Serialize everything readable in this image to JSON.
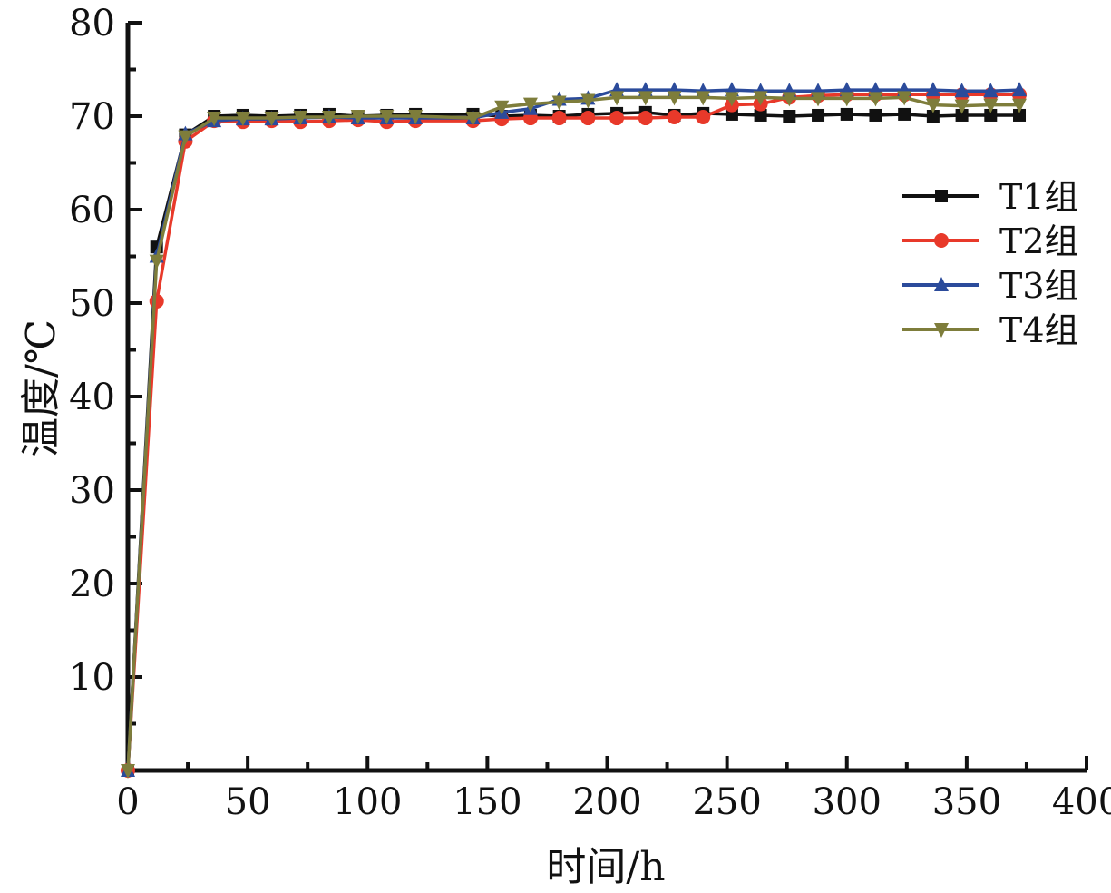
{
  "chart_data": {
    "type": "line",
    "title": "",
    "xlabel": "时间/h",
    "ylabel": "温度/℃",
    "xlim": [
      0,
      400
    ],
    "ylim": [
      0,
      80
    ],
    "xticks": [
      0,
      50,
      100,
      150,
      200,
      250,
      300,
      350,
      400
    ],
    "yticks": [
      10,
      20,
      30,
      40,
      50,
      60,
      70,
      80
    ],
    "grid": false,
    "legend_position": "right",
    "series": [
      {
        "name": "T1组",
        "color": "#111111",
        "marker": "square",
        "x": [
          0,
          12,
          24,
          36,
          48,
          60,
          72,
          84,
          96,
          108,
          120,
          144,
          156,
          168,
          180,
          192,
          204,
          216,
          228,
          240,
          252,
          264,
          276,
          288,
          300,
          312,
          324,
          336,
          348,
          360,
          372
        ],
        "y": [
          0,
          56,
          68,
          70,
          70.1,
          70,
          70.1,
          70.2,
          70,
          70.1,
          70.2,
          70.2,
          70,
          70.1,
          70,
          70.2,
          70.3,
          70.4,
          70.1,
          70.3,
          70.2,
          70.1,
          70,
          70.1,
          70.2,
          70.1,
          70.2,
          70,
          70.1,
          70.1,
          70.1
        ]
      },
      {
        "name": "T2组",
        "color": "#e8392a",
        "marker": "circle",
        "x": [
          0,
          12,
          24,
          36,
          48,
          60,
          72,
          84,
          96,
          108,
          120,
          144,
          156,
          168,
          180,
          192,
          204,
          216,
          228,
          240,
          252,
          264,
          276,
          288,
          300,
          312,
          324,
          336,
          348,
          360,
          372
        ],
        "y": [
          0,
          50.2,
          67.3,
          69.5,
          69.4,
          69.5,
          69.4,
          69.5,
          69.6,
          69.4,
          69.5,
          69.5,
          69.7,
          69.8,
          69.8,
          69.8,
          69.8,
          69.8,
          69.9,
          69.9,
          71.2,
          71.3,
          72,
          72.2,
          72.3,
          72.3,
          72.3,
          72.3,
          72.3,
          72.3,
          72.3
        ]
      },
      {
        "name": "T3组",
        "color": "#2b4b9b",
        "marker": "triangle-up",
        "x": [
          0,
          12,
          24,
          36,
          48,
          60,
          72,
          84,
          96,
          108,
          120,
          144,
          156,
          168,
          180,
          192,
          204,
          216,
          228,
          240,
          252,
          264,
          276,
          288,
          300,
          312,
          324,
          336,
          348,
          360,
          372
        ],
        "y": [
          0,
          55,
          68.1,
          69.5,
          69.7,
          69.7,
          69.8,
          69.9,
          69.8,
          69.8,
          69.8,
          69.8,
          70.4,
          70.8,
          71.8,
          71.9,
          72.8,
          72.8,
          72.8,
          72.7,
          72.8,
          72.7,
          72.7,
          72.7,
          72.8,
          72.8,
          72.8,
          72.8,
          72.7,
          72.7,
          72.8
        ]
      },
      {
        "name": "T4组",
        "color": "#7e7d3b",
        "marker": "triangle-down",
        "x": [
          0,
          12,
          24,
          36,
          48,
          60,
          72,
          84,
          96,
          108,
          120,
          144,
          156,
          168,
          180,
          192,
          204,
          216,
          228,
          240,
          252,
          264,
          276,
          288,
          300,
          312,
          324,
          336,
          348,
          360,
          372
        ],
        "y": [
          0,
          54.5,
          67.8,
          69.8,
          69.8,
          69.8,
          69.9,
          69.9,
          70,
          70,
          70,
          69.8,
          71,
          71.3,
          71.5,
          71.7,
          72,
          72,
          72,
          72,
          71.9,
          72,
          71.9,
          71.9,
          71.9,
          71.9,
          72,
          71.2,
          71.1,
          71.2,
          71.2
        ]
      }
    ]
  }
}
